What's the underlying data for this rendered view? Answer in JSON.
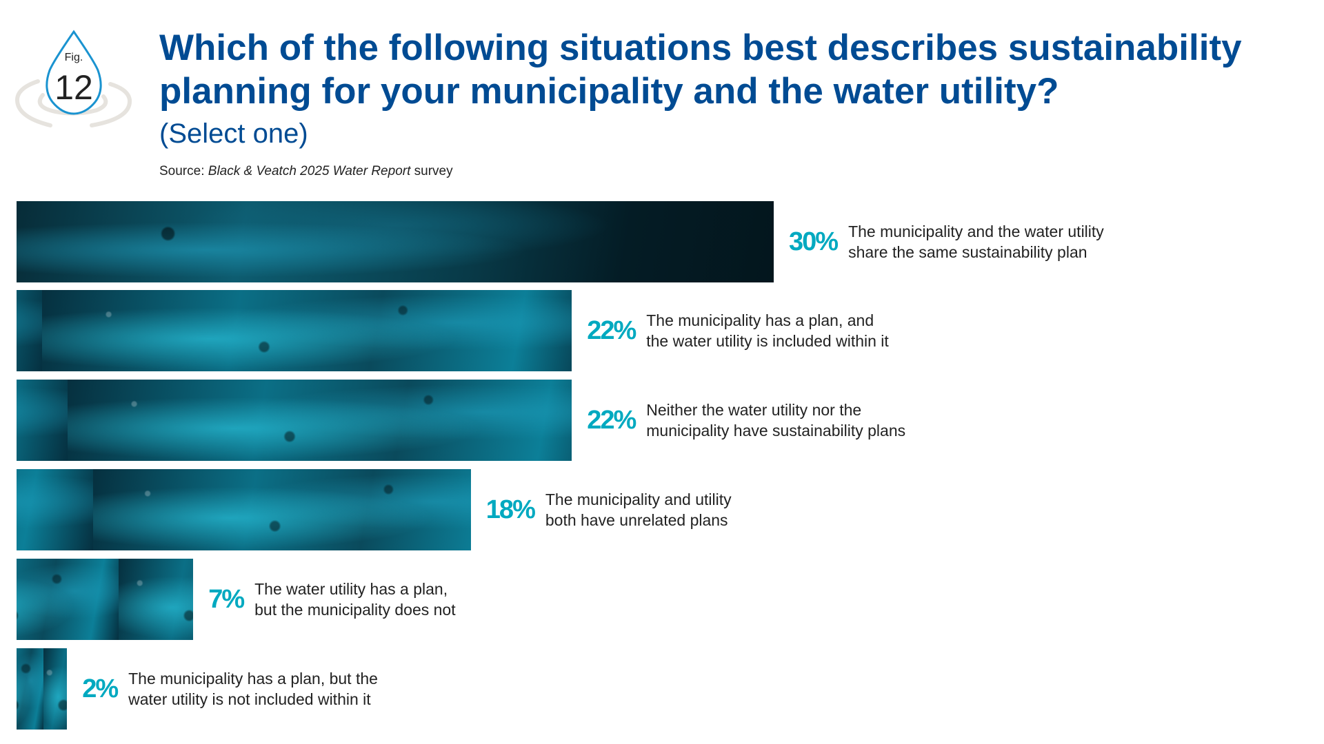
{
  "figure": {
    "fig_label": "Fig.",
    "fig_number": "12"
  },
  "header": {
    "title": "Which of the following situations best describes sustainability planning for your municipality and the water utility?",
    "subtitle": "(Select one)",
    "source_prefix": "Source: ",
    "source_italic": "Black & Veatch 2025 Water Report",
    "source_suffix": " survey"
  },
  "colors": {
    "title": "#004b93",
    "percent": "#00a9c0"
  },
  "chart_data": {
    "type": "bar",
    "orientation": "horizontal",
    "title": "Which of the following situations best describes sustainability planning for your municipality and the water utility?",
    "categories": [
      "The municipality and the water utility\nshare the same sustainability plan",
      "The municipality has a plan, and\nthe water utility is included within it",
      "Neither the water utility nor the\nmunicipality have sustainability plans",
      "The municipality and utility\nboth have unrelated plans",
      "The water utility has a plan,\nbut the municipality does not",
      "The municipality  has a plan, but the\nwater utility is not included within it"
    ],
    "values": [
      30,
      22,
      22,
      18,
      7,
      2
    ],
    "labels": [
      "30%",
      "22%",
      "22%",
      "18%",
      "7%",
      "2%"
    ],
    "unit": "%",
    "xlim": [
      0,
      30
    ]
  }
}
